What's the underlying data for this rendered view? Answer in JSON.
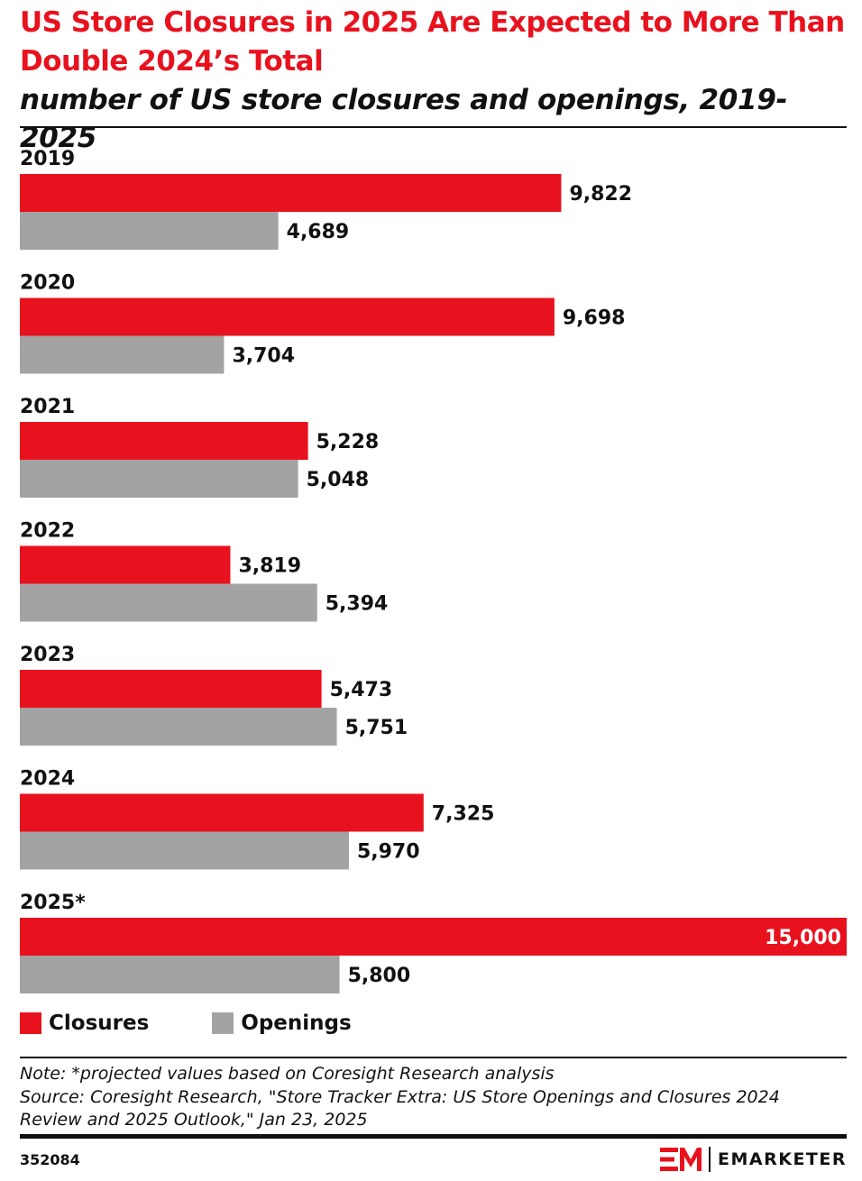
{
  "title": "US Store Closures in 2025 Are Expected to More Than Double 2024’s Total",
  "subtitle": "number of US store closures and openings, 2019-2025",
  "colors": {
    "closures": "#e8121e",
    "openings": "#a3a3a3",
    "title": "#e8121e"
  },
  "chart_data": {
    "type": "bar",
    "orientation": "horizontal",
    "categories": [
      "2019",
      "2020",
      "2021",
      "2022",
      "2023",
      "2024",
      "2025*"
    ],
    "series": [
      {
        "name": "Closures",
        "values": [
          9822,
          9698,
          5228,
          3819,
          5473,
          7325,
          15000
        ],
        "labels": [
          "9,822",
          "9,698",
          "5,228",
          "3,819",
          "5,473",
          "7,325",
          "15,000"
        ]
      },
      {
        "name": "Openings",
        "values": [
          4689,
          3704,
          5048,
          5394,
          5751,
          5970,
          5800
        ],
        "labels": [
          "4,689",
          "3,704",
          "5,048",
          "5,394",
          "5,751",
          "5,970",
          "5,800"
        ]
      }
    ],
    "xlim": [
      0,
      15000
    ],
    "grid": false,
    "legend": "bottom-left",
    "data_labels": true
  },
  "legend": [
    {
      "label": "Closures",
      "icon": "red-square-icon"
    },
    {
      "label": "Openings",
      "icon": "gray-square-icon"
    }
  ],
  "footnotes": {
    "note": "Note: *projected values based on Coresight Research analysis",
    "source_line1": "Source: Coresight Research, \"Store Tracker Extra: US Store Openings and Closures 2024",
    "source_line2": "Review and 2025 Outlook,\" Jan 23, 2025"
  },
  "chart_id": "352084",
  "brand": {
    "name": "EMARKETER",
    "logo": "em-logo-icon"
  }
}
